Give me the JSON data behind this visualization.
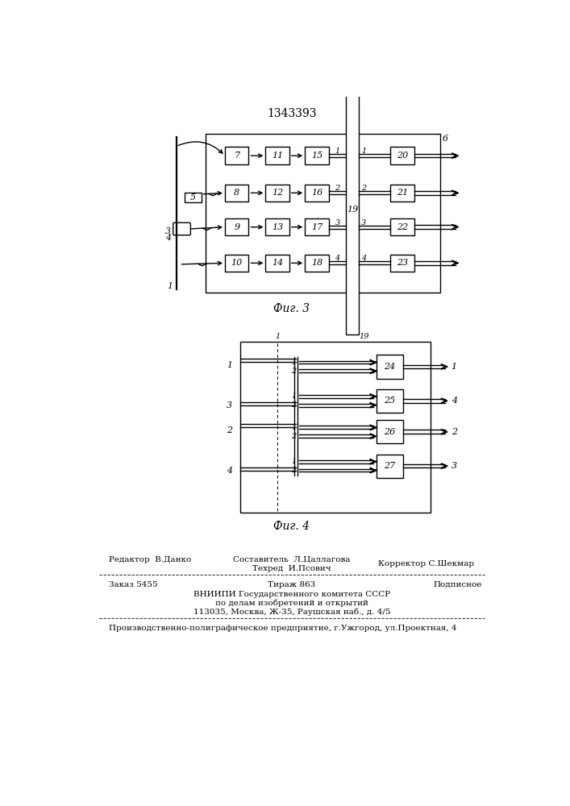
{
  "title": "1343393",
  "fig3_label": "Фиг. 3",
  "fig4_label": "Фиг. 4",
  "bg_color": "#ffffff",
  "footer": {
    "left1": "Редактор  В.Данко",
    "center1a": "Составитель  Л.Цаллагова",
    "center1b": "Техред  И.Псович",
    "right1": "Корректор С.Шекмар",
    "left2": "Заказ 5455",
    "center2": "Тираж 863",
    "right2": "Подписное",
    "line3": "ВНИИПИ Государственного комитета СССР",
    "line4": "по делам изобретений и открытий",
    "line5": "113035, Москва, Ж-35, Раушская наб., д. 4/5",
    "line6": "Производственно-полиграфическое предприятие, г.Ужгород, ул.Проектная, 4"
  }
}
